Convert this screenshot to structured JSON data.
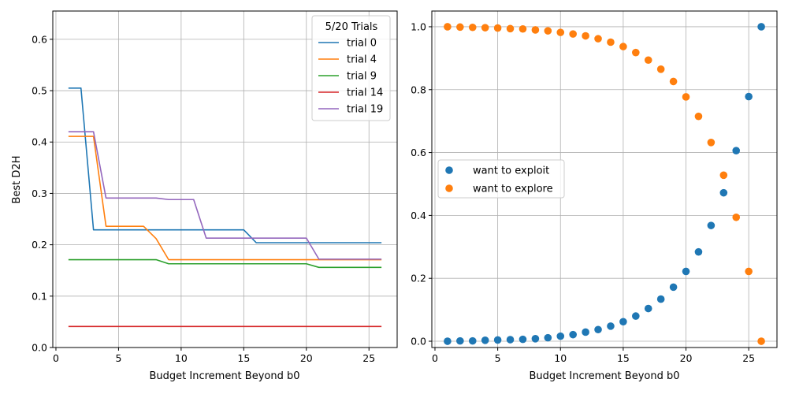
{
  "chart_data": [
    {
      "type": "line",
      "xlabel": "Budget Increment Beyond b0",
      "ylabel": "Best D2H",
      "xlim": [
        -0.25,
        27.25
      ],
      "ylim": [
        0,
        0.655
      ],
      "xticks": [
        0,
        5,
        10,
        15,
        20,
        25
      ],
      "xtick_labels": [
        "0",
        "5",
        "10",
        "15",
        "20",
        "25"
      ],
      "yticks": [
        0,
        0.1,
        0.2,
        0.3,
        0.4,
        0.5,
        0.6
      ],
      "ytick_labels": [
        "0.0",
        "0.1",
        "0.2",
        "0.3",
        "0.4",
        "0.5",
        "0.6"
      ],
      "grid": true,
      "legend": {
        "title": "5/20 Trials",
        "position": "top-right"
      },
      "x": [
        1,
        2,
        3,
        4,
        5,
        6,
        7,
        8,
        9,
        10,
        11,
        12,
        13,
        14,
        15,
        16,
        17,
        18,
        19,
        20,
        21,
        22,
        23,
        24,
        25,
        26
      ],
      "series": [
        {
          "name": "trial 0",
          "color": "#1f77b4",
          "values": [
            0.505,
            0.505,
            0.229,
            0.229,
            0.229,
            0.229,
            0.229,
            0.229,
            0.229,
            0.229,
            0.229,
            0.229,
            0.229,
            0.229,
            0.229,
            0.204,
            0.204,
            0.204,
            0.204,
            0.204,
            0.204,
            0.204,
            0.204,
            0.204,
            0.204,
            0.204
          ]
        },
        {
          "name": "trial 4",
          "color": "#ff7f0e",
          "values": [
            0.411,
            0.411,
            0.411,
            0.236,
            0.236,
            0.236,
            0.236,
            0.212,
            0.171,
            0.171,
            0.171,
            0.171,
            0.171,
            0.171,
            0.171,
            0.171,
            0.171,
            0.171,
            0.171,
            0.171,
            0.171,
            0.171,
            0.171,
            0.171,
            0.171,
            0.171
          ]
        },
        {
          "name": "trial 9",
          "color": "#2ca02c",
          "values": [
            0.171,
            0.171,
            0.171,
            0.171,
            0.171,
            0.171,
            0.171,
            0.171,
            0.163,
            0.163,
            0.163,
            0.163,
            0.163,
            0.163,
            0.163,
            0.163,
            0.163,
            0.163,
            0.163,
            0.163,
            0.156,
            0.156,
            0.156,
            0.156,
            0.156,
            0.156
          ]
        },
        {
          "name": "trial 14",
          "color": "#d62728",
          "values": [
            0.041,
            0.041,
            0.041,
            0.041,
            0.041,
            0.041,
            0.041,
            0.041,
            0.041,
            0.041,
            0.041,
            0.041,
            0.041,
            0.041,
            0.041,
            0.041,
            0.041,
            0.041,
            0.041,
            0.041,
            0.041,
            0.041,
            0.041,
            0.041,
            0.041,
            0.041
          ]
        },
        {
          "name": "trial 19",
          "color": "#9467bd",
          "values": [
            0.42,
            0.42,
            0.42,
            0.291,
            0.291,
            0.291,
            0.291,
            0.291,
            0.288,
            0.288,
            0.288,
            0.213,
            0.213,
            0.213,
            0.213,
            0.213,
            0.213,
            0.213,
            0.213,
            0.213,
            0.172,
            0.172,
            0.172,
            0.172,
            0.172,
            0.172
          ]
        }
      ]
    },
    {
      "type": "scatter",
      "xlabel": "Budget Increment Beyond b0",
      "ylabel": "",
      "xlim": [
        -0.25,
        27.25
      ],
      "ylim": [
        -0.02,
        1.05
      ],
      "xticks": [
        0,
        5,
        10,
        15,
        20,
        25
      ],
      "xtick_labels": [
        "0",
        "5",
        "10",
        "15",
        "20",
        "25"
      ],
      "yticks": [
        0,
        0.2,
        0.4,
        0.6,
        0.8,
        1.0
      ],
      "ytick_labels": [
        "0.0",
        "0.2",
        "0.4",
        "0.6",
        "0.8",
        "1.0"
      ],
      "grid": true,
      "legend": {
        "position": "center-left"
      },
      "x": [
        1,
        2,
        3,
        4,
        5,
        6,
        7,
        8,
        9,
        10,
        11,
        12,
        13,
        14,
        15,
        16,
        17,
        18,
        19,
        20,
        21,
        22,
        23,
        24,
        25,
        26
      ],
      "series": [
        {
          "name": "want to exploit",
          "color": "#1f77b4",
          "values": [
            0.0,
            0.001,
            0.001,
            0.003,
            0.004,
            0.005,
            0.006,
            0.008,
            0.011,
            0.016,
            0.021,
            0.029,
            0.037,
            0.048,
            0.062,
            0.08,
            0.104,
            0.134,
            0.172,
            0.222,
            0.284,
            0.368,
            0.472,
            0.606,
            0.778,
            1.0
          ]
        },
        {
          "name": "want to explore",
          "color": "#ff7f0e",
          "values": [
            1.0,
            0.999,
            0.998,
            0.997,
            0.996,
            0.994,
            0.993,
            0.99,
            0.987,
            0.982,
            0.977,
            0.971,
            0.962,
            0.951,
            0.937,
            0.918,
            0.894,
            0.865,
            0.826,
            0.777,
            0.715,
            0.632,
            0.528,
            0.394,
            0.222,
            0.0
          ]
        }
      ]
    }
  ]
}
